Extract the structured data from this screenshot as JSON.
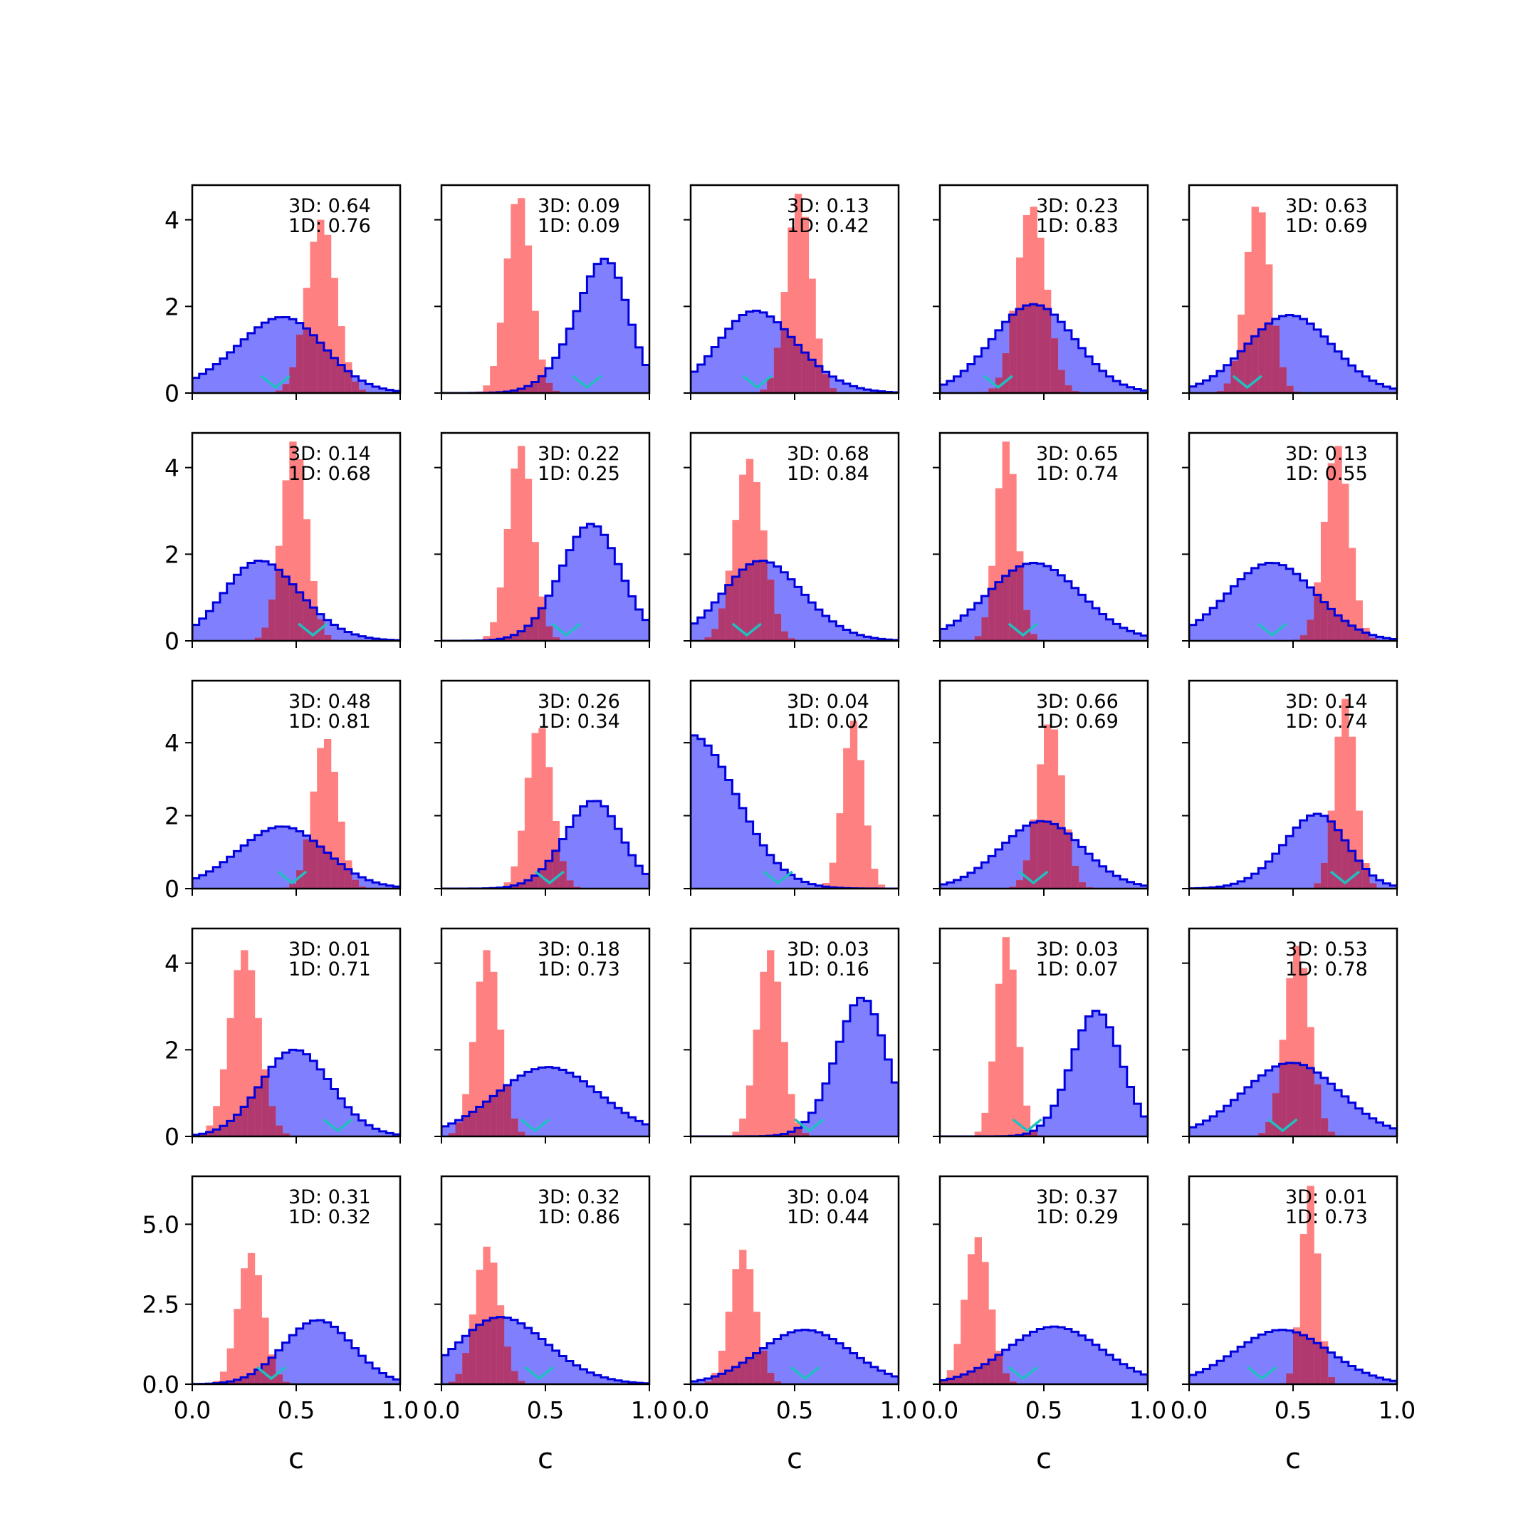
{
  "chart_data": {
    "type": "grid-of-histograms",
    "rows": 5,
    "cols": 5,
    "xlabel": "c",
    "xlim": [
      0,
      1
    ],
    "xticks": [
      "0.0",
      "0.5",
      "1.0"
    ],
    "row_ylims": [
      [
        0,
        4.8
      ],
      [
        0,
        4.8
      ],
      [
        0,
        5.7
      ],
      [
        0,
        4.8
      ],
      [
        0,
        6.5
      ]
    ],
    "row_yticks": [
      [
        "0",
        "2",
        "4"
      ],
      [
        "0",
        "2",
        "4"
      ],
      [
        "0",
        "2",
        "4"
      ],
      [
        "0",
        "2",
        "4"
      ],
      [
        "0.0",
        "2.5",
        "5.0"
      ]
    ],
    "colors": {
      "blue_fill": "#8080ff",
      "blue_edge": "#0000dd",
      "red_fill": "#ff8080",
      "overlap": "#b03a70",
      "marker": "#20c0c0"
    },
    "series_legend": [
      "blue step histogram (outlined)",
      "red filled histogram"
    ],
    "panels": [
      {
        "ann": [
          "3D: 0.64",
          "1D: 0.76"
        ],
        "blue": {
          "mu": 0.58,
          "sd": 0.28,
          "skew": -1.2,
          "peak": 1.75
        },
        "red": {
          "mu": 0.62,
          "sd": 0.07,
          "peak": 4.0
        },
        "marker": 0.4
      },
      {
        "ann": [
          "3D: 0.09",
          "1D: 0.09"
        ],
        "blue": {
          "mu": 0.88,
          "sd": 0.18,
          "skew": -1.6,
          "peak": 3.1
        },
        "red": {
          "mu": 0.37,
          "sd": 0.06,
          "peak": 4.5
        },
        "marker": 0.7
      },
      {
        "ann": [
          "3D: 0.13",
          "1D: 0.42"
        ],
        "blue": {
          "mu": 0.18,
          "sd": 0.25,
          "skew": 1.2,
          "peak": 1.9
        },
        "red": {
          "mu": 0.52,
          "sd": 0.06,
          "peak": 4.6
        },
        "marker": 0.32
      },
      {
        "ann": [
          "3D: 0.23",
          "1D: 0.83"
        ],
        "blue": {
          "mu": 0.45,
          "sd": 0.2,
          "skew": 0,
          "peak": 2.05
        },
        "red": {
          "mu": 0.44,
          "sd": 0.07,
          "peak": 4.3
        },
        "marker": 0.28
      },
      {
        "ann": [
          "3D: 0.63",
          "1D: 0.69"
        ],
        "blue": {
          "mu": 0.55,
          "sd": 0.22,
          "skew": -0.4,
          "peak": 1.8
        },
        "red": {
          "mu": 0.33,
          "sd": 0.06,
          "peak": 4.3
        },
        "marker": 0.28
      },
      {
        "ann": [
          "3D: 0.14",
          "1D: 0.68"
        ],
        "blue": {
          "mu": 0.2,
          "sd": 0.24,
          "skew": 1.2,
          "peak": 1.85
        },
        "red": {
          "mu": 0.49,
          "sd": 0.06,
          "peak": 4.6
        },
        "marker": 0.58
      },
      {
        "ann": [
          "3D: 0.22",
          "1D: 0.25"
        ],
        "blue": {
          "mu": 0.8,
          "sd": 0.17,
          "skew": -0.8,
          "peak": 2.7
        },
        "red": {
          "mu": 0.38,
          "sd": 0.06,
          "peak": 4.5
        },
        "marker": 0.6
      },
      {
        "ann": [
          "3D: 0.68",
          "1D: 0.84"
        ],
        "blue": {
          "mu": 0.22,
          "sd": 0.24,
          "skew": 1.0,
          "peak": 1.85
        },
        "red": {
          "mu": 0.28,
          "sd": 0.07,
          "peak": 4.2
        },
        "marker": 0.27
      },
      {
        "ann": [
          "3D: 0.65",
          "1D: 0.74"
        ],
        "blue": {
          "mu": 0.35,
          "sd": 0.25,
          "skew": 0.6,
          "peak": 1.8
        },
        "red": {
          "mu": 0.32,
          "sd": 0.05,
          "peak": 4.6
        },
        "marker": 0.4
      },
      {
        "ann": [
          "3D: 0.13",
          "1D: 0.55"
        ],
        "blue": {
          "mu": 0.45,
          "sd": 0.22,
          "skew": -0.3,
          "peak": 1.8
        },
        "red": {
          "mu": 0.71,
          "sd": 0.06,
          "peak": 4.5
        },
        "marker": 0.4
      },
      {
        "ann": [
          "3D: 0.48",
          "1D: 0.81"
        ],
        "blue": {
          "mu": 0.55,
          "sd": 0.25,
          "skew": -0.8,
          "peak": 1.7
        },
        "red": {
          "mu": 0.64,
          "sd": 0.06,
          "peak": 4.1
        },
        "marker": 0.48
      },
      {
        "ann": [
          "3D: 0.26",
          "1D: 0.34"
        ],
        "blue": {
          "mu": 0.82,
          "sd": 0.17,
          "skew": -1.0,
          "peak": 2.4
        },
        "red": {
          "mu": 0.47,
          "sd": 0.06,
          "peak": 4.4
        },
        "marker": 0.52
      },
      {
        "ann": [
          "3D: 0.04",
          "1D: 0.02"
        ],
        "blue": {
          "mu": 0.0,
          "sd": 0.22,
          "skew": 0,
          "peak": 4.2
        },
        "red": {
          "mu": 0.78,
          "sd": 0.05,
          "peak": 4.6
        },
        "marker": 0.42
      },
      {
        "ann": [
          "3D: 0.66",
          "1D: 0.69"
        ],
        "blue": {
          "mu": 0.58,
          "sd": 0.22,
          "skew": -0.6,
          "peak": 1.85
        },
        "red": {
          "mu": 0.53,
          "sd": 0.06,
          "peak": 4.5
        },
        "marker": 0.45
      },
      {
        "ann": [
          "3D: 0.14",
          "1D: 0.74"
        ],
        "blue": {
          "mu": 0.72,
          "sd": 0.2,
          "skew": -1.2,
          "peak": 2.05
        },
        "red": {
          "mu": 0.75,
          "sd": 0.05,
          "peak": 5.2
        },
        "marker": 0.75
      },
      {
        "ann": [
          "3D: 0.01",
          "1D: 0.71"
        ],
        "blue": {
          "mu": 0.4,
          "sd": 0.2,
          "skew": 0.8,
          "peak": 2.0
        },
        "red": {
          "mu": 0.25,
          "sd": 0.07,
          "peak": 4.3
        },
        "marker": 0.7
      },
      {
        "ann": [
          "3D: 0.18",
          "1D: 0.73"
        ],
        "blue": {
          "mu": 0.45,
          "sd": 0.26,
          "skew": 0.3,
          "peak": 1.6
        },
        "red": {
          "mu": 0.22,
          "sd": 0.06,
          "peak": 4.3
        },
        "marker": 0.45
      },
      {
        "ann": [
          "3D: 0.03",
          "1D: 0.16"
        ],
        "blue": {
          "mu": 0.9,
          "sd": 0.15,
          "skew": -1.0,
          "peak": 3.2
        },
        "red": {
          "mu": 0.38,
          "sd": 0.06,
          "peak": 4.3
        },
        "marker": 0.57
      },
      {
        "ann": [
          "3D: 0.03",
          "1D: 0.07"
        ],
        "blue": {
          "mu": 0.8,
          "sd": 0.13,
          "skew": -0.5,
          "peak": 2.9
        },
        "red": {
          "mu": 0.32,
          "sd": 0.05,
          "peak": 4.6
        },
        "marker": 0.42
      },
      {
        "ann": [
          "3D: 0.53",
          "1D: 0.78"
        ],
        "blue": {
          "mu": 0.55,
          "sd": 0.24,
          "skew": -0.3,
          "peak": 1.7
        },
        "red": {
          "mu": 0.52,
          "sd": 0.06,
          "peak": 4.4
        },
        "marker": 0.45
      },
      {
        "ann": [
          "3D: 0.31",
          "1D: 0.32"
        ],
        "blue": {
          "mu": 0.67,
          "sd": 0.18,
          "skew": -0.5,
          "peak": 2.0
        },
        "red": {
          "mu": 0.28,
          "sd": 0.06,
          "peak": 4.1
        },
        "marker": 0.38
      },
      {
        "ann": [
          "3D: 0.32",
          "1D: 0.86"
        ],
        "blue": {
          "mu": 0.15,
          "sd": 0.27,
          "skew": 1.0,
          "peak": 2.1
        },
        "red": {
          "mu": 0.22,
          "sd": 0.06,
          "peak": 4.3
        },
        "marker": 0.47
      },
      {
        "ann": [
          "3D: 0.04",
          "1D: 0.44"
        ],
        "blue": {
          "mu": 0.55,
          "sd": 0.22,
          "skew": 0,
          "peak": 1.7
        },
        "red": {
          "mu": 0.25,
          "sd": 0.06,
          "peak": 4.2
        },
        "marker": 0.55
      },
      {
        "ann": [
          "3D: 0.37",
          "1D: 0.29"
        ],
        "blue": {
          "mu": 0.55,
          "sd": 0.23,
          "skew": 0,
          "peak": 1.8
        },
        "red": {
          "mu": 0.18,
          "sd": 0.06,
          "peak": 4.6
        },
        "marker": 0.4
      },
      {
        "ann": [
          "3D: 0.01",
          "1D: 0.73"
        ],
        "blue": {
          "mu": 0.52,
          "sd": 0.24,
          "skew": -0.4,
          "peak": 1.7
        },
        "red": {
          "mu": 0.58,
          "sd": 0.04,
          "peak": 6.2
        },
        "marker": 0.35
      }
    ]
  }
}
